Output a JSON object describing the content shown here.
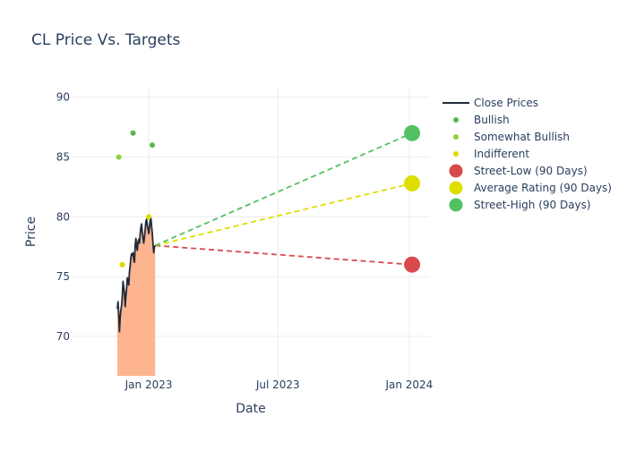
{
  "chart_data": {
    "type": "line",
    "title": "CL Price Vs. Targets",
    "xlabel": "Date",
    "ylabel": "Price",
    "xlim": [
      "2022-09-15",
      "2024-01-30"
    ],
    "ylim": [
      66.7,
      90.8
    ],
    "x_ticks": [
      {
        "date": "2023-01-01",
        "label": "Jan 2023"
      },
      {
        "date": "2023-07-01",
        "label": "Jul 2023"
      },
      {
        "date": "2024-01-01",
        "label": "Jan 2024"
      }
    ],
    "y_ticks": [
      70,
      75,
      80,
      85,
      90
    ],
    "grid": true,
    "legend_position": "right",
    "colors": {
      "close": "#1f2a3a",
      "fill": "#fdb48f",
      "bullish": "#56b84e",
      "somewhat_bullish": "#8fd13f",
      "indifferent": "#e0d800",
      "street_low": "#d94a4d",
      "average": "#dede00",
      "street_high": "#52c162",
      "grid": "#ececec"
    },
    "close_prices": {
      "name": "Close Prices",
      "points": [
        [
          "2022-11-18",
          72.3
        ],
        [
          "2022-11-19",
          72.9
        ],
        [
          "2022-11-20",
          71.8
        ],
        [
          "2022-11-21",
          70.4
        ],
        [
          "2022-11-22",
          71.6
        ],
        [
          "2022-11-23",
          72.2
        ],
        [
          "2022-11-24",
          72.6
        ],
        [
          "2022-11-25",
          73.4
        ],
        [
          "2022-11-26",
          74.6
        ],
        [
          "2022-11-27",
          74.1
        ],
        [
          "2022-11-28",
          73.6
        ],
        [
          "2022-11-29",
          72.5
        ],
        [
          "2022-11-30",
          73.4
        ],
        [
          "2022-12-01",
          74.0
        ],
        [
          "2022-12-02",
          74.9
        ],
        [
          "2022-12-03",
          74.6
        ],
        [
          "2022-12-04",
          74.3
        ],
        [
          "2022-12-05",
          75.4
        ],
        [
          "2022-12-06",
          75.9
        ],
        [
          "2022-12-07",
          76.6
        ],
        [
          "2022-12-08",
          76.9
        ],
        [
          "2022-12-09",
          76.8
        ],
        [
          "2022-12-10",
          77.0
        ],
        [
          "2022-12-11",
          76.4
        ],
        [
          "2022-12-12",
          76.2
        ],
        [
          "2022-12-13",
          77.6
        ],
        [
          "2022-12-14",
          78.2
        ],
        [
          "2022-12-15",
          77.5
        ],
        [
          "2022-12-16",
          77.2
        ],
        [
          "2022-12-17",
          77.9
        ],
        [
          "2022-12-18",
          78.1
        ],
        [
          "2022-12-19",
          77.8
        ],
        [
          "2022-12-20",
          78.6
        ],
        [
          "2022-12-21",
          79.1
        ],
        [
          "2022-12-22",
          79.4
        ],
        [
          "2022-12-23",
          78.7
        ],
        [
          "2022-12-24",
          78.2
        ],
        [
          "2022-12-25",
          77.8
        ],
        [
          "2022-12-26",
          78.3
        ],
        [
          "2022-12-27",
          78.9
        ],
        [
          "2022-12-28",
          79.6
        ],
        [
          "2022-12-29",
          79.8
        ],
        [
          "2022-12-30",
          79.3
        ],
        [
          "2022-12-31",
          79.0
        ],
        [
          "2023-01-01",
          78.6
        ],
        [
          "2023-01-02",
          79.1
        ],
        [
          "2023-01-03",
          79.7
        ],
        [
          "2023-01-04",
          79.9
        ],
        [
          "2023-01-05",
          79.2
        ],
        [
          "2023-01-06",
          78.6
        ],
        [
          "2023-01-07",
          77.7
        ],
        [
          "2023-01-08",
          77.0
        ],
        [
          "2023-01-09",
          77.5
        ],
        [
          "2023-01-10",
          77.6
        ]
      ]
    },
    "ratings": [
      {
        "name": "Bullish",
        "color_key": "bullish",
        "points": [
          [
            "2022-12-10",
            87
          ],
          [
            "2023-01-06",
            86
          ]
        ]
      },
      {
        "name": "Somewhat Bullish",
        "color_key": "somewhat_bullish",
        "points": [
          [
            "2022-11-20",
            85
          ]
        ]
      },
      {
        "name": "Indifferent",
        "color_key": "indifferent",
        "points": [
          [
            "2022-11-25",
            76
          ],
          [
            "2023-01-01",
            80
          ]
        ]
      }
    ],
    "targets": [
      {
        "name": "Street-Low (90 Days)",
        "color_key": "street_low",
        "from": [
          "2023-01-10",
          77.6
        ],
        "to": [
          "2024-01-05",
          76
        ]
      },
      {
        "name": "Average Rating (90 Days)",
        "color_key": "average",
        "from": [
          "2023-01-10",
          77.6
        ],
        "to": [
          "2024-01-05",
          82.8
        ]
      },
      {
        "name": "Street-High (90 Days)",
        "color_key": "street_high",
        "from": [
          "2023-01-10",
          77.6
        ],
        "to": [
          "2024-01-05",
          87
        ]
      }
    ]
  }
}
